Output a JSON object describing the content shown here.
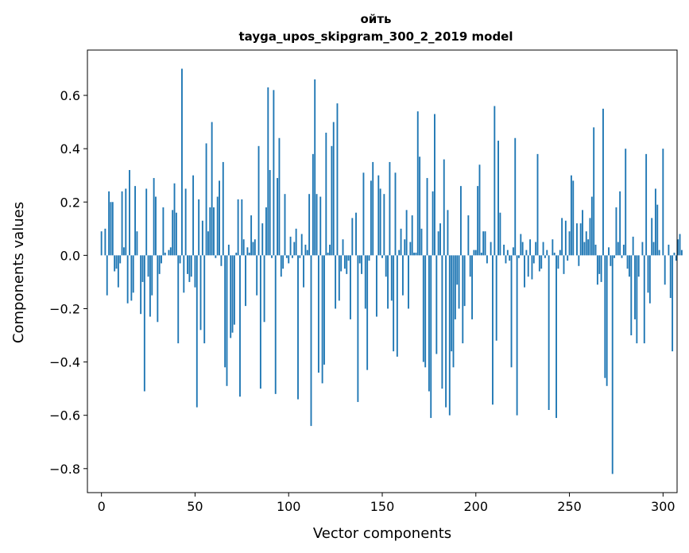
{
  "chart_data": {
    "type": "bar",
    "title": "ойть",
    "subtitle": "tayga_upos_skipgram_300_2_2019 model",
    "xlabel": "Vector components",
    "ylabel": "Components values",
    "xlim": [
      -7.5,
      307.5
    ],
    "ylim": [
      -0.89,
      0.77
    ],
    "xticks": [
      0,
      50,
      100,
      150,
      200,
      250,
      300
    ],
    "yticks": [
      -0.8,
      -0.6,
      -0.4,
      -0.2,
      0.0,
      0.2,
      0.4,
      0.6
    ],
    "xtick_labels": [
      "0",
      "50",
      "100",
      "150",
      "200",
      "250",
      "300"
    ],
    "ytick_labels": [
      "−0.8",
      "−0.6",
      "−0.4",
      "−0.2",
      "0.0",
      "0.2",
      "0.4",
      "0.6"
    ],
    "bar_color": "#1f77b4",
    "values": [
      0.09,
      0.0,
      0.1,
      -0.15,
      0.24,
      0.2,
      0.2,
      -0.06,
      -0.05,
      -0.12,
      -0.03,
      0.24,
      0.03,
      0.25,
      -0.18,
      0.32,
      -0.17,
      -0.14,
      0.26,
      0.09,
      0.0,
      -0.22,
      -0.1,
      -0.51,
      0.25,
      -0.08,
      -0.23,
      -0.15,
      0.29,
      0.22,
      -0.25,
      -0.07,
      -0.03,
      0.18,
      0.01,
      0.0,
      0.02,
      0.03,
      0.17,
      0.27,
      0.16,
      -0.33,
      -0.03,
      0.7,
      -0.14,
      0.25,
      -0.07,
      -0.1,
      -0.08,
      0.3,
      -0.12,
      -0.57,
      0.21,
      -0.28,
      0.13,
      -0.33,
      0.42,
      0.09,
      0.18,
      0.5,
      0.18,
      -0.01,
      0.22,
      0.28,
      -0.04,
      0.35,
      -0.42,
      -0.49,
      0.04,
      -0.31,
      -0.29,
      -0.26,
      0.01,
      0.21,
      -0.53,
      0.21,
      0.06,
      -0.19,
      0.03,
      0.01,
      0.15,
      0.05,
      0.06,
      -0.15,
      0.41,
      -0.5,
      0.12,
      -0.25,
      0.18,
      0.63,
      0.32,
      -0.01,
      0.62,
      -0.52,
      0.29,
      0.44,
      -0.08,
      -0.05,
      0.23,
      -0.01,
      -0.03,
      0.07,
      -0.01,
      0.05,
      0.1,
      -0.54,
      -0.01,
      0.08,
      -0.12,
      0.04,
      0.02,
      0.23,
      -0.64,
      0.38,
      0.66,
      0.23,
      -0.44,
      0.22,
      -0.48,
      -0.41,
      0.46,
      0.01,
      0.04,
      0.41,
      0.5,
      -0.2,
      0.57,
      -0.17,
      -0.06,
      0.06,
      -0.05,
      -0.07,
      -0.02,
      -0.24,
      0.14,
      0.0,
      0.16,
      -0.55,
      -0.03,
      -0.07,
      0.31,
      -0.2,
      -0.43,
      -0.02,
      0.28,
      0.35,
      0.0,
      -0.23,
      0.3,
      0.25,
      -0.01,
      0.23,
      -0.08,
      -0.2,
      0.35,
      -0.17,
      -0.36,
      0.31,
      -0.38,
      0.02,
      0.1,
      -0.15,
      0.06,
      0.17,
      -0.2,
      0.05,
      0.15,
      0.01,
      0.01,
      0.54,
      0.37,
      0.1,
      -0.4,
      -0.42,
      0.29,
      -0.51,
      -0.61,
      0.24,
      0.53,
      -0.37,
      0.09,
      0.12,
      -0.5,
      0.36,
      -0.57,
      0.17,
      -0.6,
      -0.36,
      -0.42,
      -0.24,
      -0.11,
      -0.2,
      0.26,
      -0.33,
      -0.19,
      0.0,
      0.15,
      -0.08,
      -0.24,
      0.02,
      0.02,
      0.26,
      0.34,
      0.01,
      0.09,
      0.09,
      -0.03,
      0.0,
      0.05,
      -0.56,
      0.56,
      -0.32,
      0.43,
      0.16,
      0.0,
      0.04,
      -0.03,
      0.02,
      -0.02,
      -0.42,
      0.03,
      0.44,
      -0.6,
      -0.01,
      0.08,
      0.05,
      -0.12,
      0.02,
      -0.08,
      0.06,
      -0.09,
      -0.03,
      0.05,
      0.38,
      -0.06,
      -0.05,
      0.05,
      -0.01,
      0.02,
      -0.58,
      0.0,
      0.06,
      0.01,
      -0.61,
      -0.05,
      0.02,
      0.14,
      -0.07,
      0.13,
      -0.02,
      0.09,
      0.3,
      0.28,
      0.0,
      0.12,
      -0.04,
      0.12,
      0.17,
      0.05,
      0.09,
      0.06,
      0.14,
      0.22,
      0.48,
      0.04,
      -0.11,
      -0.07,
      -0.1,
      0.55,
      -0.46,
      -0.49,
      0.03,
      -0.04,
      -0.82,
      -0.01,
      0.18,
      0.05,
      0.24,
      -0.01,
      0.04,
      0.4,
      -0.05,
      -0.08,
      -0.3,
      0.07,
      -0.24,
      -0.33,
      -0.08,
      0.0,
      0.05,
      -0.33,
      0.38,
      -0.14,
      -0.18,
      0.14,
      0.05,
      0.25,
      0.19,
      0.02,
      0.0,
      0.4,
      -0.11,
      0.0,
      0.04,
      -0.16,
      -0.36,
      0.01,
      -0.02,
      0.06,
      0.08,
      0.02
    ]
  }
}
